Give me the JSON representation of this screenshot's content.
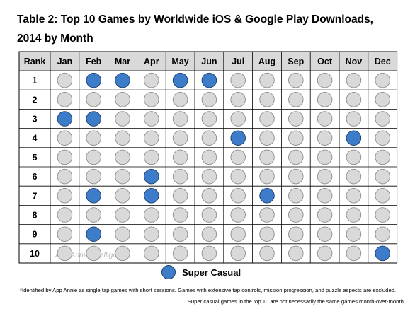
{
  "title": "Table 2: Top 10 Games by Worldwide iOS & Google Play Downloads, 2014 by Month",
  "chart_data": {
    "type": "table",
    "title": "Table 2: Top 10 Games by Worldwide iOS & Google Play Downloads, 2014 by Month",
    "row_header": "Rank",
    "columns": [
      "Jan",
      "Feb",
      "Mar",
      "Apr",
      "May",
      "Jun",
      "Jul",
      "Aug",
      "Sep",
      "Oct",
      "Nov",
      "Dec"
    ],
    "rows": [
      "1",
      "2",
      "3",
      "4",
      "5",
      "6",
      "7",
      "8",
      "9",
      "10"
    ],
    "values": [
      [
        0,
        1,
        1,
        0,
        1,
        1,
        0,
        0,
        0,
        0,
        0,
        0
      ],
      [
        0,
        0,
        0,
        0,
        0,
        0,
        0,
        0,
        0,
        0,
        0,
        0
      ],
      [
        1,
        1,
        0,
        0,
        0,
        0,
        0,
        0,
        0,
        0,
        0,
        0
      ],
      [
        0,
        0,
        0,
        0,
        0,
        0,
        1,
        0,
        0,
        0,
        1,
        0
      ],
      [
        0,
        0,
        0,
        0,
        0,
        0,
        0,
        0,
        0,
        0,
        0,
        0
      ],
      [
        0,
        0,
        0,
        1,
        0,
        0,
        0,
        0,
        0,
        0,
        0,
        0
      ],
      [
        0,
        1,
        0,
        1,
        0,
        0,
        0,
        1,
        0,
        0,
        0,
        0
      ],
      [
        0,
        0,
        0,
        0,
        0,
        0,
        0,
        0,
        0,
        0,
        0,
        0
      ],
      [
        0,
        1,
        0,
        0,
        0,
        0,
        0,
        0,
        0,
        0,
        0,
        0
      ],
      [
        0,
        0,
        0,
        0,
        0,
        0,
        0,
        0,
        0,
        0,
        0,
        1
      ]
    ],
    "legend": {
      "label": "Super Casual",
      "color": "#3d7cc9",
      "placement": "bottom-center"
    }
  },
  "colors": {
    "highlight": "#3d7cc9",
    "default": "#d9d9d9",
    "header_bg": "#d9d9d9"
  },
  "watermark": "App Annie Intelligence",
  "footnotes": [
    "*Identified by App Annie as single tap games with short sessions. Games with extensive tap controls, mission progression, and puzzle aspects are excluded.",
    "Super casual games in the top 10 are not necessarily the same games month-over-month."
  ]
}
